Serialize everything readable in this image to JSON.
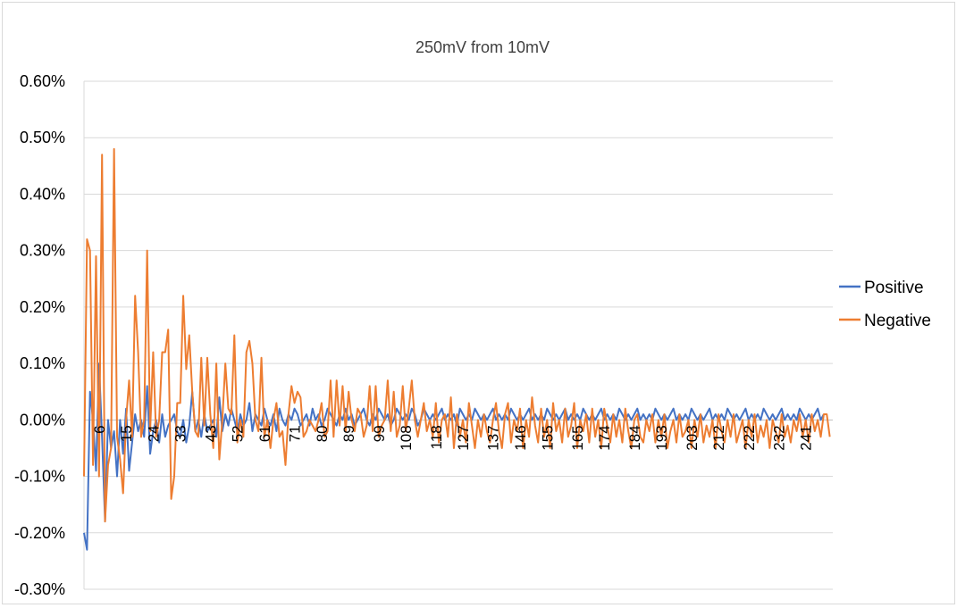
{
  "chart_data": {
    "type": "line",
    "title": "250mV from 10mV",
    "xlabel": "",
    "ylabel": "",
    "ylim": [
      -0.3,
      0.6
    ],
    "ytick_step": 0.1,
    "ytick_labels": [
      "-0.30%",
      "-0.20%",
      "-0.10%",
      "0.00%",
      "0.10%",
      "0.20%",
      "0.30%",
      "0.40%",
      "0.50%",
      "0.60%"
    ],
    "x_start": 1,
    "x_end": 250,
    "x_tick_labels": [
      "6",
      "15",
      "24",
      "33",
      "43",
      "52",
      "61",
      "71",
      "80",
      "89",
      "99",
      "108",
      "118",
      "127",
      "137",
      "146",
      "155",
      "165",
      "174",
      "184",
      "193",
      "203",
      "212",
      "222",
      "232",
      "241"
    ],
    "grid": true,
    "legend_position": "right",
    "series": [
      {
        "name": "Positive",
        "color": "#4472c4",
        "values": [
          -0.2,
          -0.23,
          0.05,
          0.0,
          -0.09,
          0.1,
          -0.03,
          -0.18,
          0.0,
          -0.05,
          -0.02,
          -0.1,
          0.0,
          -0.06,
          0.02,
          -0.09,
          -0.04,
          0.01,
          -0.02,
          0.0,
          -0.03,
          0.06,
          -0.06,
          -0.02,
          0.0,
          -0.04,
          0.01,
          -0.03,
          -0.01,
          0.0,
          0.01,
          -0.02,
          -0.03,
          0.0,
          -0.04,
          -0.01,
          0.05,
          -0.02,
          0.0,
          -0.03,
          0.01,
          -0.02,
          -0.01,
          0.0,
          -0.03,
          0.04,
          -0.02,
          0.01,
          -0.01,
          0.02,
          0.0,
          -0.02,
          0.01,
          -0.01,
          0.0,
          0.03,
          -0.02,
          0.01,
          0.0,
          -0.01,
          0.02,
          0.0,
          -0.01,
          0.01,
          -0.02,
          0.02,
          0.0,
          -0.01,
          0.01,
          0.0,
          0.02,
          0.01,
          -0.01,
          0.0,
          0.01,
          -0.01,
          0.02,
          0.0,
          0.01,
          -0.01,
          0.0,
          0.02,
          0.01,
          0.0,
          -0.01,
          0.01,
          0.0,
          0.02,
          0.0,
          0.01,
          -0.01,
          0.0,
          0.01,
          0.02,
          0.0,
          -0.01,
          0.01,
          0.0,
          0.02,
          0.01,
          0.0,
          0.01,
          -0.01,
          0.0,
          0.02,
          0.01,
          0.0,
          0.01,
          0.0,
          0.02,
          0.01,
          -0.01,
          0.0,
          0.02,
          0.01,
          0.0,
          0.01,
          0.0,
          0.01,
          0.02,
          0.0,
          0.01,
          0.0,
          0.01,
          -0.01,
          0.02,
          0.01,
          0.0,
          0.01,
          0.0,
          0.02,
          0.01,
          0.0,
          0.01,
          0.0,
          0.01,
          0.02,
          0.0,
          0.01,
          0.0,
          0.01,
          0.0,
          0.02,
          0.01,
          0.0,
          0.01,
          0.0,
          0.01,
          0.02,
          0.0,
          0.01,
          0.0,
          0.01,
          0.0,
          0.02,
          0.01,
          0.0,
          0.01,
          0.0,
          0.01,
          0.02,
          0.0,
          0.01,
          0.0,
          0.01,
          0.0,
          0.02,
          0.01,
          0.0,
          0.01,
          0.0,
          0.01,
          0.02,
          0.0,
          0.01,
          0.0,
          0.01,
          0.0,
          0.02,
          0.01,
          0.0,
          0.01,
          0.0,
          0.01,
          0.02,
          0.0,
          0.01,
          0.0,
          0.01,
          0.0,
          0.02,
          0.01,
          0.0,
          0.01,
          0.0,
          0.01,
          0.02,
          0.0,
          0.01,
          0.0,
          0.01,
          0.0,
          0.02,
          0.01,
          0.0,
          0.01,
          0.0,
          0.01,
          0.02,
          0.0,
          0.01,
          0.0,
          0.01,
          0.0,
          0.02,
          0.01,
          0.0,
          0.01,
          0.0,
          0.01,
          0.02,
          0.0,
          0.01,
          0.0,
          0.01,
          0.0,
          0.02,
          0.01,
          0.0,
          0.01,
          0.0,
          0.01,
          0.02,
          0.0,
          0.01,
          0.0,
          0.01,
          0.0,
          0.02,
          0.01,
          0.0,
          0.01,
          0.0,
          0.01,
          0.02,
          0.0,
          0.01
        ]
      },
      {
        "name": "Negative",
        "color": "#ed7d31",
        "values": [
          -0.1,
          0.32,
          0.3,
          -0.08,
          0.29,
          -0.1,
          0.47,
          -0.18,
          -0.08,
          -0.05,
          0.48,
          -0.03,
          -0.07,
          -0.13,
          0.0,
          0.07,
          -0.03,
          0.22,
          0.12,
          -0.03,
          0.0,
          0.3,
          -0.02,
          0.12,
          -0.03,
          0.0,
          0.12,
          0.12,
          0.16,
          -0.14,
          -0.1,
          0.03,
          0.03,
          0.22,
          0.09,
          0.15,
          0.05,
          -0.02,
          -0.03,
          0.11,
          -0.01,
          0.11,
          0.01,
          -0.05,
          0.1,
          -0.07,
          0.0,
          0.1,
          0.02,
          0.01,
          0.15,
          -0.04,
          0.0,
          -0.03,
          0.12,
          0.14,
          0.1,
          0.0,
          -0.02,
          0.11,
          -0.03,
          0.0,
          -0.05,
          0.0,
          0.03,
          -0.03,
          -0.02,
          -0.08,
          0.01,
          0.06,
          0.03,
          0.05,
          0.04,
          -0.03,
          -0.02,
          0.0,
          -0.01,
          -0.02,
          0.0,
          0.03,
          -0.03,
          -0.02,
          0.07,
          -0.03,
          0.07,
          -0.01,
          0.06,
          -0.02,
          0.05,
          0.0,
          -0.02,
          0.02,
          0.01,
          -0.03,
          -0.01,
          0.06,
          -0.02,
          0.06,
          -0.03,
          -0.01,
          0.0,
          0.07,
          -0.02,
          0.05,
          -0.03,
          -0.01,
          0.06,
          -0.02,
          0.02,
          0.07,
          0.0,
          -0.03,
          0.0,
          0.03,
          -0.02,
          0.0,
          -0.03,
          0.03,
          -0.04,
          0.0,
          0.01,
          -0.03,
          0.04,
          -0.05,
          0.01,
          -0.03,
          0.0,
          -0.04,
          0.03,
          -0.01,
          -0.05,
          0.0,
          -0.03,
          0.01,
          -0.02,
          -0.04,
          0.0,
          0.03,
          -0.02,
          -0.05,
          0.01,
          0.03,
          -0.04,
          0.0,
          -0.02,
          0.02,
          -0.05,
          0.0,
          -0.03,
          0.04,
          -0.01,
          -0.04,
          0.02,
          -0.03,
          0.0,
          -0.05,
          0.03,
          -0.02,
          0.0,
          -0.04,
          0.02,
          -0.03,
          -0.01,
          0.03,
          -0.05,
          0.0,
          -0.02,
          0.01,
          -0.04,
          0.02,
          -0.03,
          0.0,
          -0.05,
          0.02,
          -0.01,
          -0.04,
          0.01,
          -0.03,
          0.0,
          -0.04,
          0.02,
          -0.02,
          -0.05,
          0.0,
          0.01,
          -0.03,
          -0.04,
          0.0,
          -0.02,
          0.01,
          -0.04,
          0.0,
          -0.03,
          0.01,
          -0.05,
          -0.02,
          0.0,
          -0.04,
          0.01,
          -0.03,
          -0.02,
          0.0,
          -0.05,
          0.0,
          -0.03,
          0.01,
          -0.04,
          -0.01,
          -0.03,
          0.0,
          -0.05,
          0.01,
          -0.02,
          -0.04,
          0.0,
          -0.03,
          0.01,
          -0.04,
          -0.02,
          0.0,
          -0.05,
          0.0,
          -0.03,
          0.01,
          -0.04,
          -0.01,
          -0.03,
          0.0,
          -0.05,
          0.0,
          -0.02,
          -0.04,
          0.01,
          -0.03,
          -0.01,
          -0.04,
          0.0,
          -0.02,
          0.01,
          -0.03,
          0.0,
          -0.04,
          0.01,
          -0.02,
          0.0,
          -0.03,
          0.01,
          0.01,
          -0.03
        ]
      }
    ]
  }
}
